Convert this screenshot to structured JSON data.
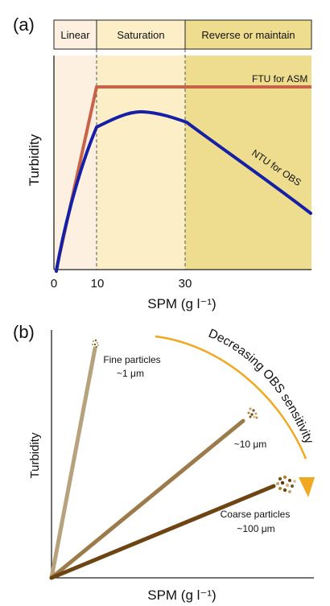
{
  "panel_a": {
    "label": "(a)",
    "zones": {
      "linear": "Linear",
      "saturation": "Saturation",
      "reverse": "Reverse or maintain"
    },
    "ylabel": "Turbidity",
    "xlabel": "SPM (g l⁻¹)",
    "xticks": [
      "0",
      "10",
      "30"
    ],
    "curve_ftu": "FTU for ASM",
    "curve_ntu": "NTU for OBS",
    "colors": {
      "linear_bg": "#fdf0e0",
      "saturation_bg": "#fcefc7",
      "reverse_bg": "#eedd8e",
      "ftu": "#c96348",
      "ntu": "#1520a6"
    }
  },
  "panel_b": {
    "label": "(b)",
    "ylabel": "Turbidity",
    "xlabel": "SPM (g l⁻¹)",
    "arrow_text": "Decreasing OBS sensitivity",
    "fine": {
      "name": "Fine particles",
      "size": "~1 μm"
    },
    "medium": {
      "size": "~10 μm"
    },
    "coarse": {
      "name": "Coarse particles",
      "size": "~100 μm"
    },
    "colors": {
      "fine_line": "#b8a17d",
      "medium_line": "#9c7b4b",
      "coarse_line": "#6e4512",
      "arrow": "#f0a820"
    }
  }
}
